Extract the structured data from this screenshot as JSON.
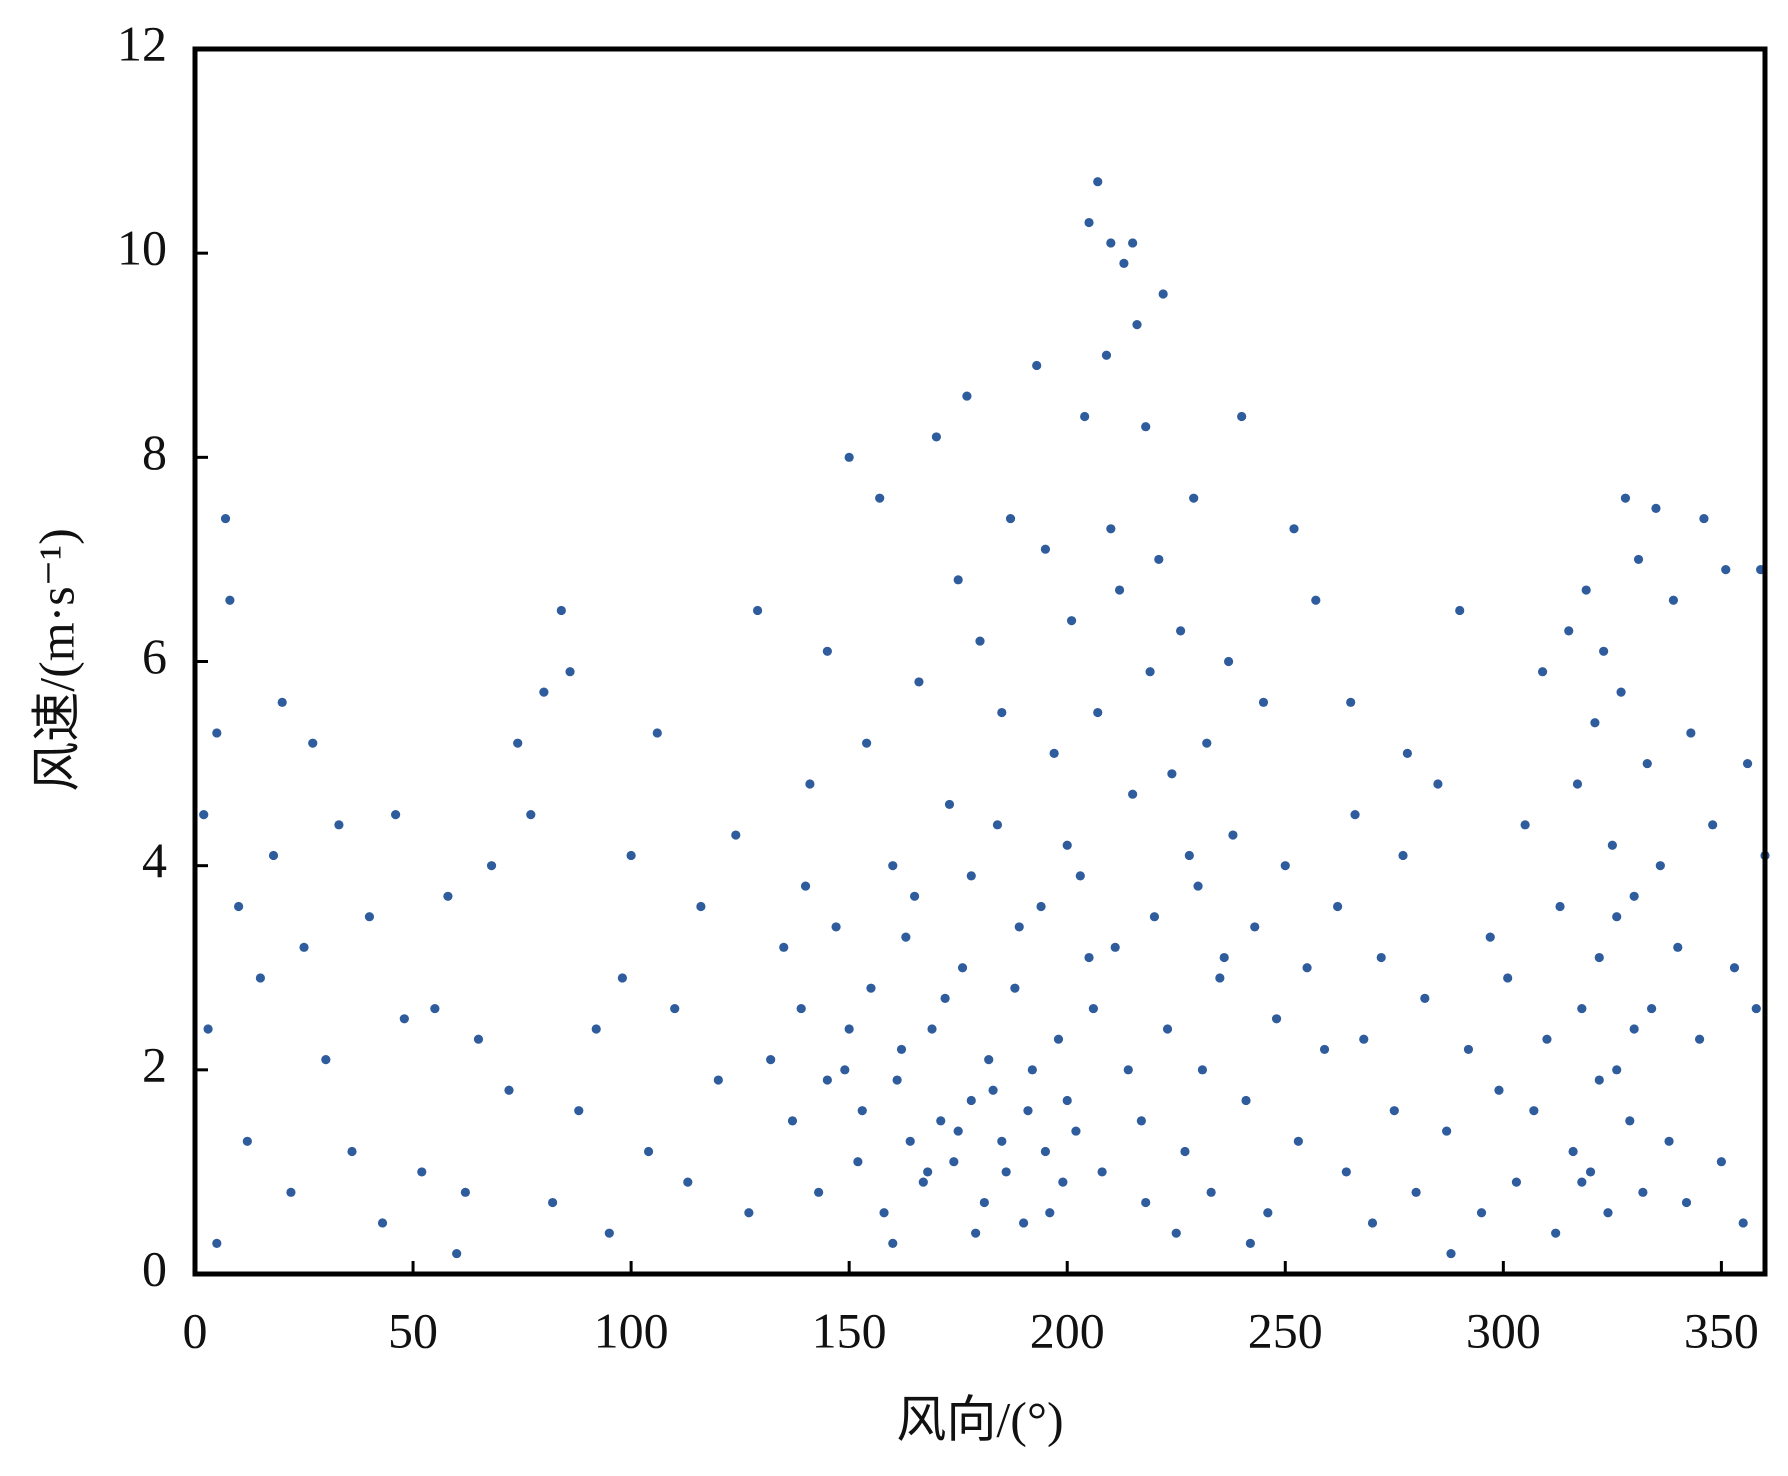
{
  "chart_data": {
    "type": "scatter",
    "xlabel": "风向/(°)",
    "ylabel": "风速/(m·s⁻¹)",
    "xlim": [
      0,
      360
    ],
    "xticks": [
      0,
      50,
      100,
      150,
      200,
      250,
      300,
      350
    ],
    "ylim": [
      0,
      12
    ],
    "yticks": [
      0,
      2,
      4,
      6,
      8,
      10,
      12
    ],
    "color": "#2f5c9c",
    "x": [
      2,
      3,
      5,
      7,
      8,
      10,
      12,
      15,
      18,
      20,
      22,
      25,
      27,
      30,
      33,
      36,
      40,
      43,
      46,
      48,
      52,
      55,
      58,
      62,
      65,
      68,
      72,
      74,
      77,
      80,
      82,
      84,
      86,
      88,
      92,
      95,
      98,
      100,
      104,
      106,
      110,
      113,
      116,
      120,
      124,
      127,
      129,
      132,
      5,
      60,
      135,
      137,
      139,
      141,
      143,
      145,
      147,
      149,
      150,
      152,
      154,
      155,
      157,
      158,
      160,
      161,
      163,
      164,
      166,
      167,
      169,
      170,
      171,
      173,
      174,
      176,
      177,
      178,
      180,
      181,
      182,
      184,
      185,
      187,
      188,
      190,
      191,
      193,
      194,
      195,
      197,
      198,
      199,
      201,
      202,
      203,
      204,
      205,
      206,
      207,
      207,
      208,
      209,
      210,
      210,
      211,
      212,
      213,
      214,
      215,
      215,
      216,
      217,
      218,
      219,
      220,
      221,
      222,
      223,
      224,
      226,
      227,
      229,
      230,
      232,
      233,
      235,
      237,
      238,
      240,
      241,
      243,
      245,
      246,
      248,
      250,
      252,
      253,
      255,
      257,
      259,
      153,
      162,
      168,
      172,
      175,
      179,
      183,
      186,
      189,
      192,
      196,
      200,
      200,
      185,
      165,
      175,
      195,
      225,
      231,
      236,
      242,
      160,
      145,
      140,
      150,
      178,
      205,
      218,
      228,
      262,
      264,
      266,
      268,
      270,
      272,
      275,
      277,
      280,
      282,
      285,
      287,
      290,
      292,
      295,
      297,
      299,
      278,
      265,
      288,
      301,
      303,
      305,
      307,
      309,
      310,
      312,
      313,
      315,
      316,
      317,
      318,
      319,
      320,
      321,
      322,
      323,
      324,
      325,
      326,
      327,
      328,
      329,
      330,
      331,
      332,
      333,
      334,
      335,
      336,
      338,
      339,
      340,
      342,
      343,
      345,
      346,
      348,
      350,
      351,
      353,
      355,
      356,
      358,
      359,
      360,
      322,
      326,
      318,
      330
    ],
    "values": [
      4.5,
      2.4,
      5.3,
      7.4,
      6.6,
      3.6,
      1.3,
      2.9,
      4.1,
      5.6,
      0.8,
      3.2,
      5.2,
      2.1,
      4.4,
      1.2,
      3.5,
      0.5,
      4.5,
      2.5,
      1.0,
      2.6,
      3.7,
      0.8,
      2.3,
      4.0,
      1.8,
      5.2,
      4.5,
      5.7,
      0.7,
      6.5,
      5.9,
      1.6,
      2.4,
      0.4,
      2.9,
      4.1,
      1.2,
      5.3,
      2.6,
      0.9,
      3.6,
      1.9,
      4.3,
      0.6,
      6.5,
      2.1,
      0.3,
      0.2,
      3.2,
      1.5,
      2.6,
      4.8,
      0.8,
      6.1,
      3.4,
      2.0,
      8.0,
      1.1,
      5.2,
      2.8,
      7.6,
      0.6,
      4.0,
      1.9,
      3.3,
      1.3,
      5.8,
      0.9,
      2.4,
      8.2,
      1.5,
      4.6,
      1.1,
      3.0,
      8.6,
      1.7,
      6.2,
      0.7,
      2.1,
      4.4,
      1.3,
      7.4,
      2.8,
      0.5,
      1.6,
      8.9,
      3.6,
      1.2,
      5.1,
      2.3,
      0.9,
      6.4,
      1.4,
      3.9,
      8.4,
      10.3,
      2.6,
      10.7,
      5.5,
      1.0,
      9.0,
      10.1,
      7.3,
      3.2,
      6.7,
      9.9,
      2.0,
      10.1,
      4.7,
      9.3,
      1.5,
      8.3,
      5.9,
      3.5,
      7.0,
      9.6,
      2.4,
      4.9,
      6.3,
      1.2,
      7.6,
      3.8,
      5.2,
      0.8,
      2.9,
      6.0,
      4.3,
      8.4,
      1.7,
      3.4,
      5.6,
      0.6,
      2.5,
      4.0,
      7.3,
      1.3,
      3.0,
      6.6,
      2.2,
      1.6,
      2.2,
      1.0,
      2.7,
      1.4,
      0.4,
      1.8,
      1.0,
      3.4,
      2.0,
      0.6,
      1.7,
      4.2,
      5.5,
      3.7,
      6.8,
      7.1,
      0.4,
      2.0,
      3.1,
      0.3,
      0.3,
      1.9,
      3.8,
      2.4,
      3.9,
      3.1,
      0.7,
      4.1,
      3.6,
      1.0,
      4.5,
      2.3,
      0.5,
      3.1,
      1.6,
      4.1,
      0.8,
      2.7,
      4.8,
      1.4,
      6.5,
      2.2,
      0.6,
      3.3,
      1.8,
      5.1,
      5.6,
      0.2,
      2.9,
      0.9,
      4.4,
      1.6,
      5.9,
      2.3,
      0.4,
      3.6,
      6.3,
      1.2,
      4.8,
      2.6,
      6.7,
      1.0,
      5.4,
      3.1,
      6.1,
      0.6,
      4.2,
      2.0,
      5.7,
      7.6,
      1.5,
      3.7,
      7.0,
      0.8,
      5.0,
      2.6,
      7.5,
      4.0,
      1.3,
      6.6,
      3.2,
      0.7,
      5.3,
      2.3,
      7.4,
      4.4,
      1.1,
      6.9,
      3.0,
      0.5,
      5.0,
      2.6,
      6.9,
      4.1,
      1.9,
      3.5,
      0.9,
      2.4
    ]
  }
}
